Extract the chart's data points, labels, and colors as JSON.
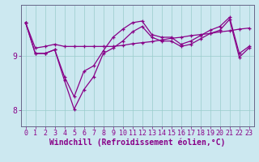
{
  "xlabel": "Windchill (Refroidissement éolien,°C)",
  "background_color": "#cce8f0",
  "line_color": "#880088",
  "grid_color": "#99cccc",
  "xlim": [
    -0.5,
    23.5
  ],
  "ylim": [
    7.7,
    9.95
  ],
  "yticks": [
    8,
    9
  ],
  "xticks": [
    0,
    1,
    2,
    3,
    4,
    5,
    6,
    7,
    8,
    9,
    10,
    11,
    12,
    13,
    14,
    15,
    16,
    17,
    18,
    19,
    20,
    21,
    22,
    23
  ],
  "series": [
    [
      9.62,
      9.15,
      9.18,
      9.22,
      9.18,
      9.18,
      9.18,
      9.18,
      9.18,
      9.18,
      9.2,
      9.23,
      9.25,
      9.27,
      9.3,
      9.33,
      9.35,
      9.38,
      9.4,
      9.42,
      9.45,
      9.47,
      9.5,
      9.52
    ],
    [
      9.62,
      9.05,
      9.05,
      9.12,
      8.62,
      8.25,
      8.72,
      8.82,
      9.1,
      9.35,
      9.5,
      9.62,
      9.65,
      9.4,
      9.35,
      9.35,
      9.22,
      9.28,
      9.38,
      9.48,
      9.55,
      9.72,
      9.05,
      9.18
    ],
    [
      9.62,
      9.05,
      9.05,
      9.12,
      8.55,
      8.02,
      8.38,
      8.62,
      9.05,
      9.15,
      9.28,
      9.45,
      9.55,
      9.35,
      9.28,
      9.28,
      9.18,
      9.22,
      9.32,
      9.42,
      9.48,
      9.68,
      8.98,
      9.15
    ]
  ],
  "tick_fontsize": 6,
  "axis_fontsize": 7
}
